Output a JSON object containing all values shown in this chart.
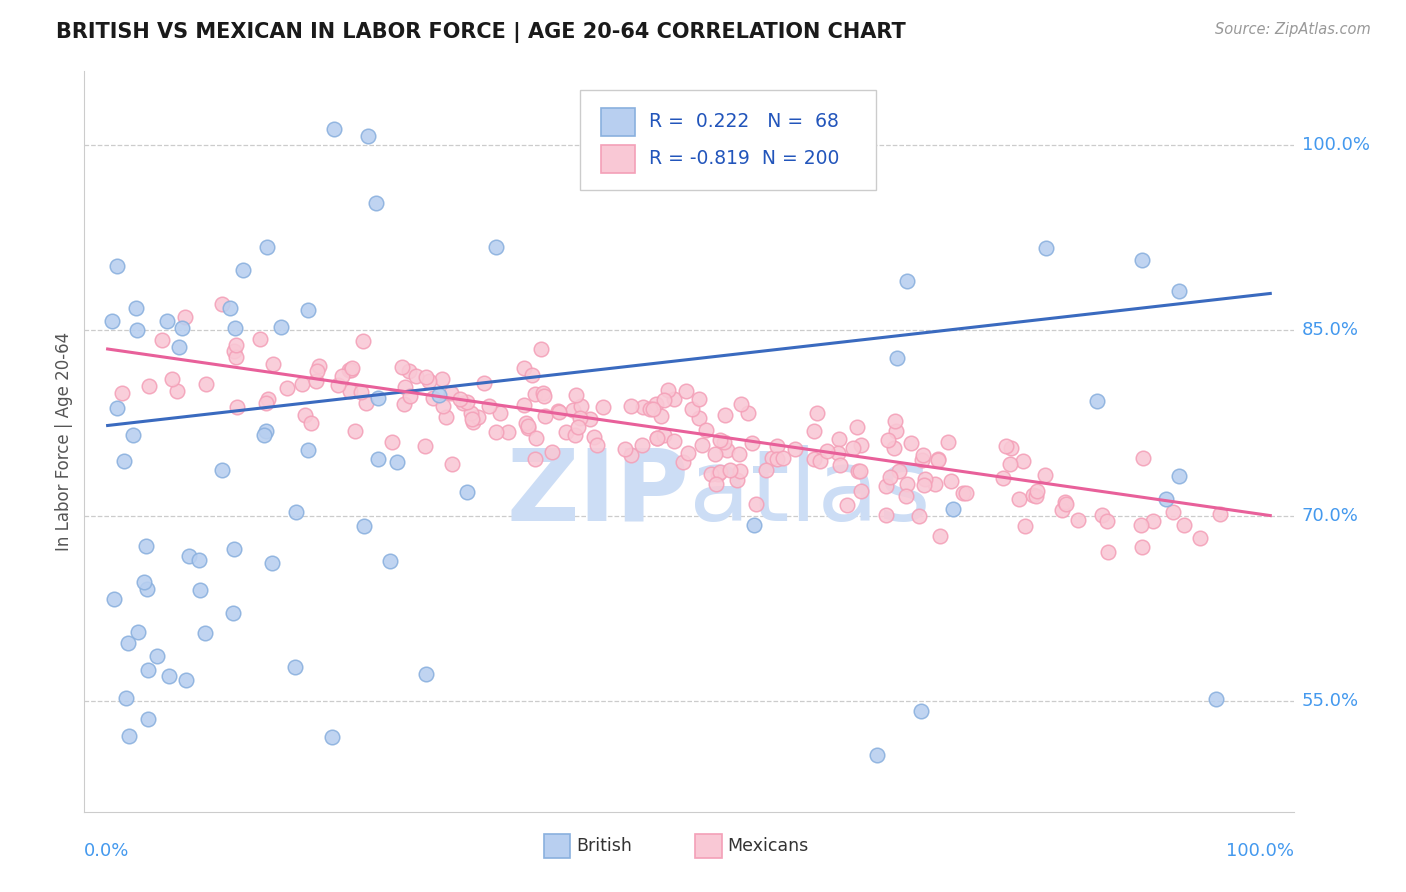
{
  "title": "BRITISH VS MEXICAN IN LABOR FORCE | AGE 20-64 CORRELATION CHART",
  "source_text": "Source: ZipAtlas.com",
  "ylabel": "In Labor Force | Age 20-64",
  "xlim": [
    -0.02,
    1.02
  ],
  "ylim": [
    0.46,
    1.06
  ],
  "yticks": [
    0.55,
    0.7,
    0.85,
    1.0
  ],
  "ytick_labels": [
    "55.0%",
    "70.0%",
    "85.0%",
    "100.0%"
  ],
  "xtick_labels": [
    "0.0%",
    "100.0%"
  ],
  "british_R": 0.222,
  "british_N": 68,
  "mexican_R": -0.819,
  "mexican_N": 200,
  "british_color": "#8ab0de",
  "british_fill": "#b8cff0",
  "mexican_color": "#f4a0b8",
  "mexican_fill": "#f9c8d5",
  "line_british": "#3a6abf",
  "line_mexican": "#e8609a",
  "watermark_color": "#ccddf5",
  "grid_color": "#cccccc",
  "title_color": "#1a1a1a",
  "legend_text_color": "#2255bb",
  "right_label_color": "#4499ee",
  "brit_line_y0": 0.773,
  "brit_line_y1": 0.88,
  "mex_line_y0": 0.835,
  "mex_line_y1": 0.7
}
